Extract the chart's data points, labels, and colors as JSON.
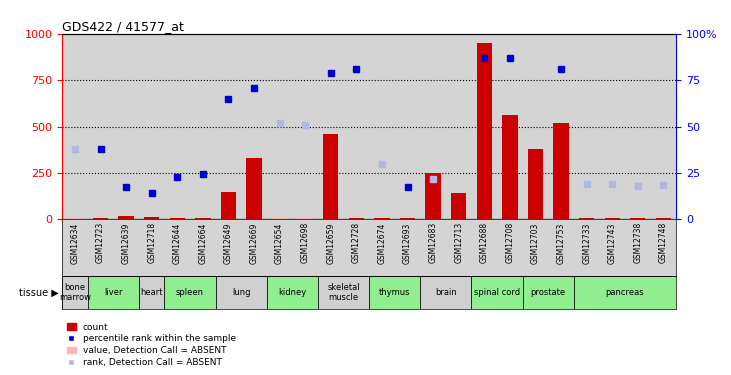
{
  "title": "GDS422 / 41577_at",
  "samples": [
    "GSM12634",
    "GSM12723",
    "GSM12639",
    "GSM12718",
    "GSM12644",
    "GSM12664",
    "GSM12649",
    "GSM12669",
    "GSM12654",
    "GSM12698",
    "GSM12659",
    "GSM12728",
    "GSM12674",
    "GSM12693",
    "GSM12683",
    "GSM12713",
    "GSM12688",
    "GSM12708",
    "GSM12703",
    "GSM12753",
    "GSM12733",
    "GSM12743",
    "GSM12738",
    "GSM12748"
  ],
  "tissues": [
    {
      "label": "bone\nmarrow",
      "start": 0,
      "end": 1,
      "color": "#d0d0d0"
    },
    {
      "label": "liver",
      "start": 1,
      "end": 3,
      "color": "#90ee90"
    },
    {
      "label": "heart",
      "start": 3,
      "end": 4,
      "color": "#d0d0d0"
    },
    {
      "label": "spleen",
      "start": 4,
      "end": 6,
      "color": "#90ee90"
    },
    {
      "label": "lung",
      "start": 6,
      "end": 8,
      "color": "#d0d0d0"
    },
    {
      "label": "kidney",
      "start": 8,
      "end": 10,
      "color": "#90ee90"
    },
    {
      "label": "skeletal\nmuscle",
      "start": 10,
      "end": 12,
      "color": "#d0d0d0"
    },
    {
      "label": "thymus",
      "start": 12,
      "end": 14,
      "color": "#90ee90"
    },
    {
      "label": "brain",
      "start": 14,
      "end": 16,
      "color": "#d0d0d0"
    },
    {
      "label": "spinal cord",
      "start": 16,
      "end": 18,
      "color": "#90ee90"
    },
    {
      "label": "prostate",
      "start": 18,
      "end": 20,
      "color": "#90ee90"
    },
    {
      "label": "pancreas",
      "start": 20,
      "end": 24,
      "color": "#90ee90"
    }
  ],
  "red_bars": [
    10,
    5,
    20,
    15,
    5,
    10,
    150,
    330,
    5,
    5,
    460,
    5,
    5,
    5,
    250,
    140,
    950,
    560,
    380,
    520,
    10,
    5,
    10,
    5
  ],
  "red_absent": [
    true,
    false,
    false,
    false,
    false,
    false,
    false,
    false,
    true,
    true,
    false,
    false,
    false,
    false,
    false,
    false,
    false,
    false,
    false,
    false,
    false,
    false,
    false,
    false
  ],
  "blue_squares": [
    null,
    380,
    175,
    140,
    230,
    245,
    650,
    710,
    null,
    null,
    790,
    810,
    null,
    175,
    null,
    null,
    870,
    870,
    null,
    810,
    null,
    null,
    null,
    null
  ],
  "blue_absent": [
    380,
    null,
    null,
    null,
    null,
    null,
    null,
    null,
    520,
    510,
    null,
    null,
    300,
    null,
    220,
    null,
    null,
    null,
    null,
    null,
    190,
    190,
    180,
    185
  ],
  "ylim": [
    0,
    1000
  ],
  "yticks": [
    0,
    250,
    500,
    750,
    1000
  ],
  "right_yticks": [
    0,
    25,
    50,
    75,
    100
  ],
  "right_ylabels": [
    "0",
    "25",
    "50",
    "75",
    "100%"
  ],
  "bar_width": 0.6,
  "red_color": "#cc0000",
  "red_absent_color": "#ffb6b6",
  "blue_color": "#0000cc",
  "blue_absent_color": "#b0b8e0",
  "plot_bg": "#ffffff",
  "sample_bg": "#d4d4d4"
}
